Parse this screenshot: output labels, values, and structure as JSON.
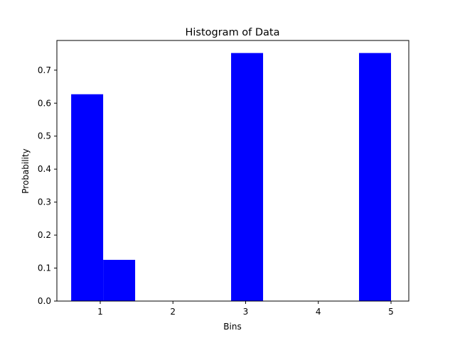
{
  "chart_data": {
    "type": "bar",
    "title": "Histogram of Data",
    "xlabel": "Bins",
    "ylabel": "Probability",
    "bar_color": "#0000ff",
    "xlim": [
      0.6,
      5.2
    ],
    "ylim": [
      0,
      0.79
    ],
    "xticks": [
      1,
      2,
      3,
      4,
      5
    ],
    "yticks": [
      0.0,
      0.1,
      0.2,
      0.3,
      0.4,
      0.5,
      0.6,
      0.7
    ],
    "bins": [
      {
        "start": 0.6,
        "end": 1.04,
        "value": 0.627
      },
      {
        "start": 1.04,
        "end": 1.48,
        "value": 0.125
      },
      {
        "start": 1.48,
        "end": 1.92,
        "value": 0.0
      },
      {
        "start": 1.92,
        "end": 2.36,
        "value": 0.0
      },
      {
        "start": 2.36,
        "end": 2.8,
        "value": 0.0
      },
      {
        "start": 2.8,
        "end": 3.24,
        "value": 0.752
      },
      {
        "start": 3.24,
        "end": 3.68,
        "value": 0.0
      },
      {
        "start": 3.68,
        "end": 4.12,
        "value": 0.0
      },
      {
        "start": 4.12,
        "end": 4.56,
        "value": 0.0
      },
      {
        "start": 4.56,
        "end": 5.0,
        "value": 0.752
      }
    ],
    "grid": false,
    "legend": null
  }
}
